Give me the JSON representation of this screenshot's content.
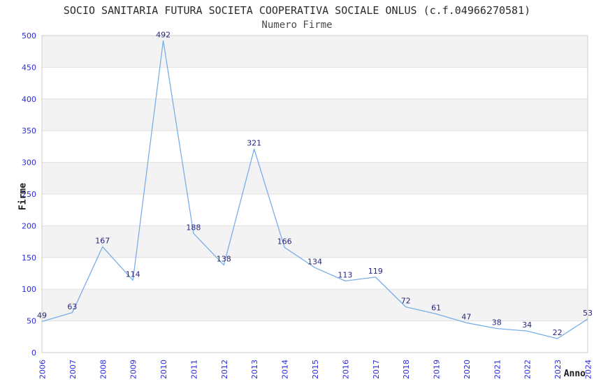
{
  "chart_data": {
    "type": "line",
    "title": "SOCIO SANITARIA FUTURA SOCIETA COOPERATIVA SOCIALE ONLUS (c.f.04966270581)",
    "subtitle": "Numero Firme",
    "xlabel": "Anno",
    "ylabel": "Firme",
    "x": [
      "2006",
      "2007",
      "2008",
      "2009",
      "2010",
      "2011",
      "2012",
      "2013",
      "2014",
      "2015",
      "2016",
      "2017",
      "2018",
      "2019",
      "2020",
      "2021",
      "2022",
      "2023",
      "2024"
    ],
    "values": [
      49,
      63,
      167,
      114,
      492,
      188,
      138,
      321,
      166,
      134,
      113,
      119,
      72,
      61,
      47,
      38,
      34,
      22,
      53
    ],
    "ylim": [
      0,
      500
    ],
    "ytick_step": 50,
    "yticks": [
      0,
      50,
      100,
      150,
      200,
      250,
      300,
      350,
      400,
      450,
      500
    ],
    "grid": true,
    "legend": "none",
    "markers": "none",
    "data_labels": "shown above each point",
    "plot_bands": "alternating horizontal 50-unit bands, gray on odd bands",
    "x_tick_rotation": -90,
    "colors": {
      "line": "#7aaee8",
      "band_gray": "#f3f3f3",
      "band_white": "#ffffff",
      "grid": "#e0e0e0",
      "border": "#cccccc",
      "tick_label": "#2b2bdd",
      "data_label": "#26267d",
      "title": "#2b2b2b",
      "subtitle": "#4a4a4a",
      "axis_title": "#1a1a1a",
      "background": "#ffffff"
    }
  }
}
